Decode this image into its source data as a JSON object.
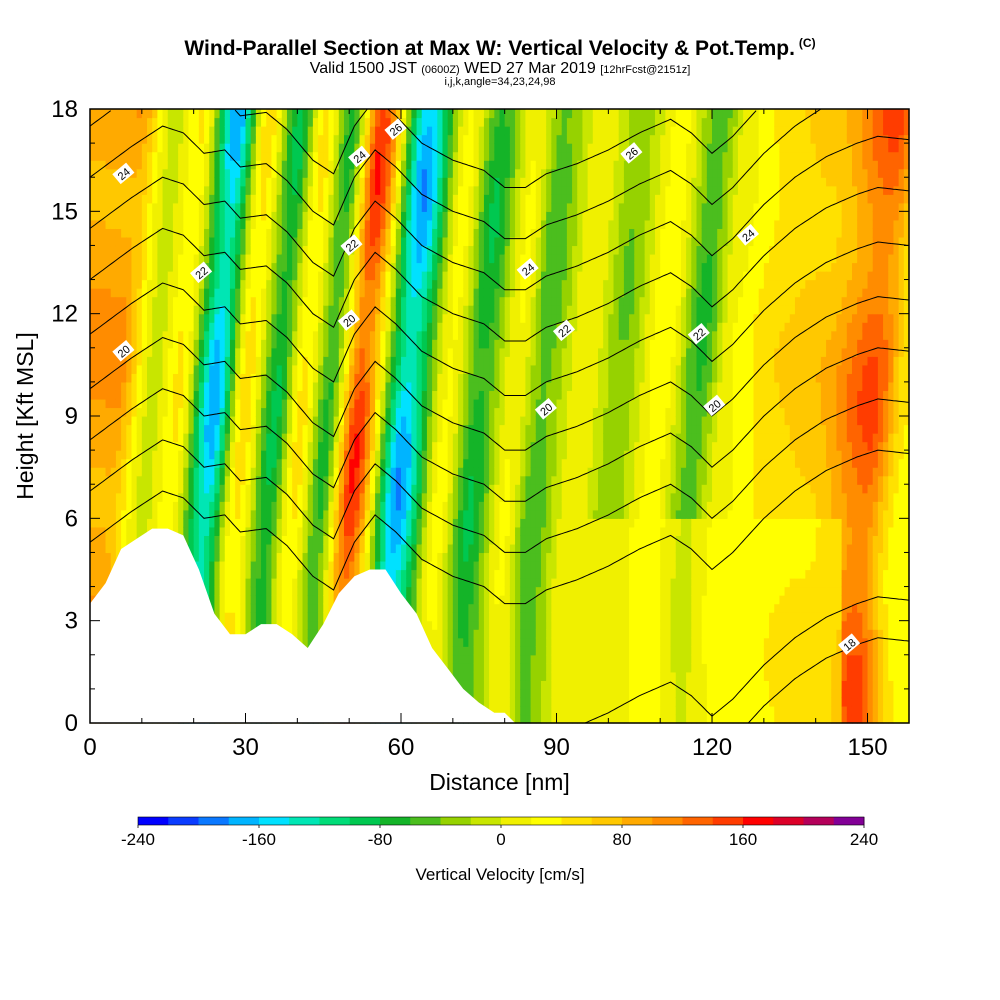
{
  "header": {
    "title": "Wind-Parallel Section at Max W: Vertical Velocity & Pot.Temp.",
    "copyright_mark": "(C)",
    "valid_prefix": "Valid 1500 JST",
    "valid_utc": "(0600Z)",
    "valid_date": "WED 27 Mar 2019",
    "forecast_info": "[12hrFcst@2151z]",
    "indices": "i,j,k,angle=34,23,24,98"
  },
  "colors": {
    "neg": [
      "#0000ff",
      "#0a3cff",
      "#0a78ff",
      "#00b4ff",
      "#00e1ff",
      "#00e6b4",
      "#00dc78",
      "#00c850",
      "#14b428",
      "#4bbe1e",
      "#96d200",
      "#c8e600"
    ],
    "pos": [
      "#f0f000",
      "#ffff00",
      "#ffe100",
      "#ffc800",
      "#ffaa00",
      "#ff8c00",
      "#ff6400",
      "#ff3c00",
      "#ff0000",
      "#dc0028",
      "#b4005a",
      "#820096"
    ],
    "terrain": "#ffffff",
    "contour": "#000000"
  },
  "chart_data": {
    "type": "heatmap",
    "xlabel": "Distance [nm]",
    "ylabel": "Height [Kft MSL]",
    "xlim": [
      0,
      158
    ],
    "ylim": [
      0,
      18
    ],
    "x_ticks": [
      0,
      30,
      60,
      90,
      120,
      150
    ],
    "y_ticks": [
      0,
      3,
      6,
      9,
      12,
      15,
      18
    ],
    "colorbar": {
      "label": "Vertical Velocity [cm/s]",
      "range": [
        -240,
        240
      ],
      "step": 20,
      "tick_labels": [
        "-240",
        "-160",
        "-80",
        "0",
        "80",
        "160",
        "240"
      ]
    },
    "terrain_profile": [
      [
        0,
        3.5
      ],
      [
        3,
        4.1
      ],
      [
        6,
        5.1
      ],
      [
        9,
        5.4
      ],
      [
        12,
        5.7
      ],
      [
        15,
        5.7
      ],
      [
        18,
        5.5
      ],
      [
        21,
        4.5
      ],
      [
        24,
        3.2
      ],
      [
        27,
        2.6
      ],
      [
        30,
        2.6
      ],
      [
        33,
        2.9
      ],
      [
        36,
        2.9
      ],
      [
        39,
        2.6
      ],
      [
        42,
        2.2
      ],
      [
        45,
        2.9
      ],
      [
        48,
        3.8
      ],
      [
        51,
        4.3
      ],
      [
        54,
        4.5
      ],
      [
        57,
        4.5
      ],
      [
        60,
        3.8
      ],
      [
        63,
        3.2
      ],
      [
        66,
        2.2
      ],
      [
        69,
        1.6
      ],
      [
        72,
        1.0
      ],
      [
        75,
        0.6
      ],
      [
        78,
        0.3
      ],
      [
        80,
        0.3
      ],
      [
        82,
        0.0
      ],
      [
        158,
        0.0
      ]
    ],
    "w_features": [
      {
        "x": 2,
        "w": 110
      },
      {
        "x": 9,
        "w": -10
      },
      {
        "x": 14,
        "w": 45
      },
      {
        "x": 21,
        "w": -180
      },
      {
        "x": 27,
        "w": 55
      },
      {
        "x": 33,
        "w": -90
      },
      {
        "x": 38,
        "w": 50
      },
      {
        "x": 43,
        "w": -70
      },
      {
        "x": 49,
        "w": 165
      },
      {
        "x": 58,
        "w": -185
      },
      {
        "x": 66,
        "w": 30
      },
      {
        "x": 72,
        "w": -85
      },
      {
        "x": 79,
        "w": 25
      },
      {
        "x": 84,
        "w": -60
      },
      {
        "x": 92,
        "w": 20
      },
      {
        "x": 99,
        "w": -45
      },
      {
        "x": 107,
        "w": 40
      },
      {
        "x": 114,
        "w": -70
      },
      {
        "x": 120,
        "w": 20
      },
      {
        "x": 128,
        "w": 60
      },
      {
        "x": 137,
        "w": 80
      },
      {
        "x": 148,
        "w": 150
      },
      {
        "x": 155,
        "w": 40
      }
    ],
    "theta_contours": [
      {
        "theta": 18,
        "y_offset": -8.8
      },
      {
        "theta": 19,
        "y_offset": -7.6
      },
      {
        "theta": 20,
        "y_offset": -3.3
      },
      {
        "theta": 21,
        "y_offset": -1.8
      },
      {
        "theta": 22,
        "y_offset": -0.3
      },
      {
        "theta": 23,
        "y_offset": 1.2
      },
      {
        "theta": 24,
        "y_offset": 2.8
      },
      {
        "theta": 25,
        "y_offset": 4.4
      },
      {
        "theta": 26,
        "y_offset": 5.9
      },
      {
        "theta": 27,
        "y_offset": 7.4
      },
      {
        "theta": 28,
        "y_offset": 8.9
      }
    ],
    "theta_base_profile": [
      [
        0,
        8.6
      ],
      [
        8,
        9.5
      ],
      [
        14,
        10.1
      ],
      [
        18,
        9.9
      ],
      [
        22,
        9.3
      ],
      [
        26,
        9.4
      ],
      [
        29,
        8.9
      ],
      [
        34,
        9.0
      ],
      [
        38,
        8.5
      ],
      [
        43,
        7.6
      ],
      [
        47,
        7.2
      ],
      [
        51,
        8.6
      ],
      [
        55,
        9.4
      ],
      [
        59,
        8.9
      ],
      [
        64,
        8.1
      ],
      [
        70,
        7.6
      ],
      [
        76,
        7.3
      ],
      [
        80,
        6.8
      ],
      [
        84,
        6.8
      ],
      [
        88,
        7.2
      ],
      [
        94,
        7.5
      ],
      [
        100,
        7.9
      ],
      [
        106,
        8.4
      ],
      [
        112,
        8.8
      ],
      [
        116,
        8.4
      ],
      [
        120,
        7.8
      ],
      [
        124,
        8.3
      ],
      [
        130,
        9.3
      ],
      [
        136,
        10.1
      ],
      [
        142,
        10.7
      ],
      [
        148,
        11.1
      ],
      [
        152,
        11.3
      ],
      [
        158,
        11.2
      ]
    ],
    "theta_labels": [
      {
        "text": "24",
        "x": 6.5,
        "y": 16.1
      },
      {
        "text": "22",
        "x": 21.5,
        "y": 13.2
      },
      {
        "text": "20",
        "x": 6.5,
        "y": 10.9
      },
      {
        "text": "24",
        "x": 52.0,
        "y": 16.6
      },
      {
        "text": "26",
        "x": 59.0,
        "y": 17.4
      },
      {
        "text": "22",
        "x": 50.5,
        "y": 14.0
      },
      {
        "text": "20",
        "x": 50.0,
        "y": 11.8
      },
      {
        "text": "26",
        "x": 104.5,
        "y": 16.7
      },
      {
        "text": "24",
        "x": 84.5,
        "y": 13.3
      },
      {
        "text": "22",
        "x": 91.5,
        "y": 11.5
      },
      {
        "text": "20",
        "x": 88.0,
        "y": 9.2
      },
      {
        "text": "22",
        "x": 117.5,
        "y": 11.4
      },
      {
        "text": "20",
        "x": 120.5,
        "y": 9.3
      },
      {
        "text": "24",
        "x": 127.0,
        "y": 14.3
      },
      {
        "text": "18",
        "x": 146.5,
        "y": 2.3
      }
    ]
  }
}
